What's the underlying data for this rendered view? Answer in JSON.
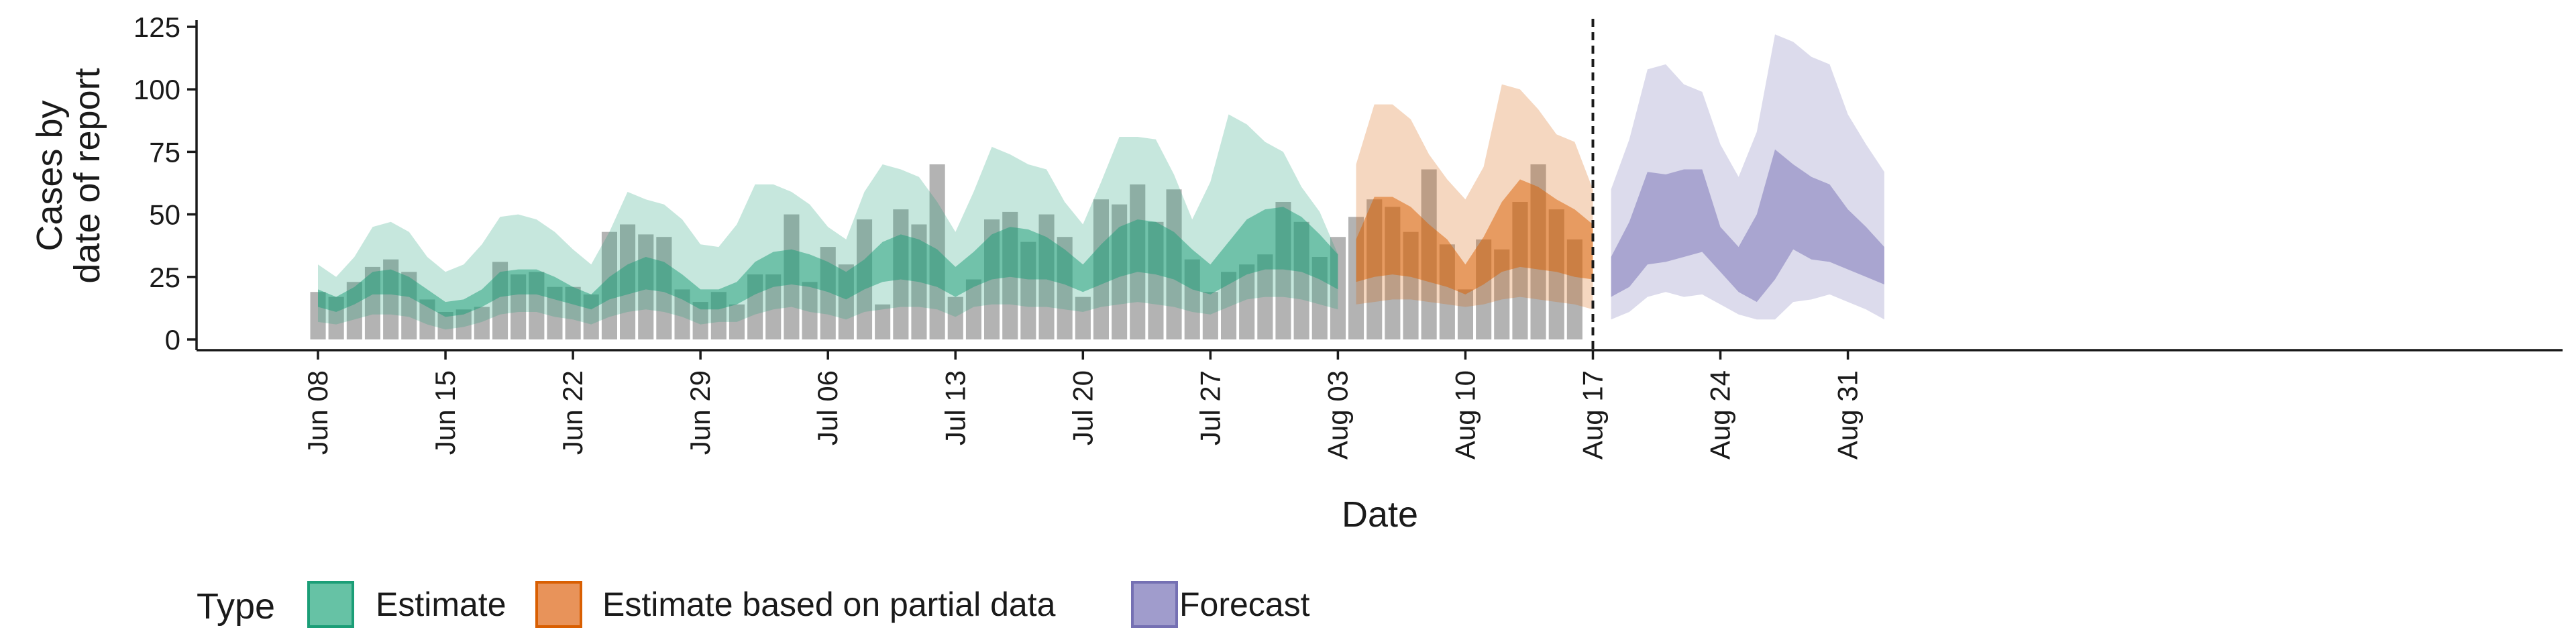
{
  "chart_data": {
    "type": "area",
    "xlabel": "Date",
    "ylabel_lines": [
      "Cases by",
      "date of report"
    ],
    "ylim": [
      0,
      125
    ],
    "yticks": [
      0,
      25,
      50,
      75,
      100,
      125
    ],
    "x_range": [
      "2020-06-04",
      "2020-09-02"
    ],
    "xticks": [
      {
        "date": "2020-06-08",
        "label": "Jun 08"
      },
      {
        "date": "2020-06-15",
        "label": "Jun 15"
      },
      {
        "date": "2020-06-22",
        "label": "Jun 22"
      },
      {
        "date": "2020-06-29",
        "label": "Jun 29"
      },
      {
        "date": "2020-07-06",
        "label": "Jul 06"
      },
      {
        "date": "2020-07-13",
        "label": "Jul 13"
      },
      {
        "date": "2020-07-20",
        "label": "Jul 20"
      },
      {
        "date": "2020-07-27",
        "label": "Jul 27"
      },
      {
        "date": "2020-08-03",
        "label": "Aug 03"
      },
      {
        "date": "2020-08-10",
        "label": "Aug 10"
      },
      {
        "date": "2020-08-17",
        "label": "Aug 17"
      },
      {
        "date": "2020-08-24",
        "label": "Aug 24"
      },
      {
        "date": "2020-08-31",
        "label": "Aug 31"
      }
    ],
    "vline_date": "2020-08-17",
    "legend": {
      "title": "Type",
      "placement": "bottom",
      "entries": [
        {
          "label": "Estimate",
          "fill": "#66c2a5",
          "stroke": "#1b9e77"
        },
        {
          "label": "Estimate based on partial data",
          "fill": "#e8935a",
          "stroke": "#d95f02"
        },
        {
          "label": "Forecast",
          "fill": "#a09ccc",
          "stroke": "#7570b3"
        }
      ]
    },
    "colors": {
      "bars": "#b3b3b3",
      "estimate": "#1b9e77",
      "partial": "#d95f02",
      "forecast": "#7570b3",
      "vline": "#1a1a1a"
    },
    "reported_cases": {
      "start_date": "2020-06-08",
      "values": [
        19,
        17,
        23,
        29,
        32,
        27,
        16,
        11,
        12,
        13,
        31,
        26,
        27,
        21,
        21,
        18,
        43,
        46,
        42,
        41,
        20,
        15,
        19,
        14,
        26,
        26,
        50,
        23,
        37,
        30,
        48,
        14,
        52,
        46,
        70,
        17,
        24,
        48,
        51,
        39,
        50,
        41,
        17,
        56,
        54,
        62,
        47,
        60,
        32,
        19,
        27,
        30,
        34,
        55,
        47,
        33,
        41,
        49,
        56,
        53,
        43,
        68,
        38,
        20,
        40,
        36,
        55,
        70,
        52,
        40
      ]
    },
    "series": [
      {
        "name": "Estimate",
        "start_date": "2020-06-08",
        "lower90": [
          7,
          6,
          8,
          10,
          10,
          9,
          6,
          4,
          5,
          7,
          10,
          11,
          11,
          9,
          8,
          6,
          9,
          11,
          12,
          11,
          9,
          6,
          7,
          7,
          10,
          12,
          13,
          11,
          10,
          8,
          11,
          12,
          13,
          13,
          12,
          9,
          13,
          14,
          14,
          13,
          13,
          12,
          11,
          13,
          14,
          15,
          14,
          13,
          11,
          10,
          13,
          16,
          17,
          17,
          16,
          14,
          12
        ],
        "lower50": [
          13,
          11,
          14,
          18,
          18,
          17,
          13,
          9,
          10,
          13,
          17,
          18,
          18,
          16,
          14,
          12,
          16,
          18,
          20,
          19,
          16,
          12,
          12,
          14,
          18,
          21,
          22,
          21,
          19,
          16,
          20,
          23,
          24,
          23,
          21,
          17,
          21,
          24,
          25,
          24,
          24,
          22,
          19,
          22,
          25,
          27,
          26,
          24,
          20,
          18,
          22,
          26,
          28,
          28,
          27,
          24,
          20
        ],
        "upper50": [
          20,
          17,
          21,
          27,
          28,
          25,
          20,
          15,
          16,
          20,
          27,
          28,
          28,
          25,
          21,
          18,
          25,
          30,
          33,
          31,
          26,
          20,
          20,
          23,
          31,
          35,
          36,
          34,
          31,
          27,
          32,
          39,
          42,
          40,
          36,
          29,
          35,
          42,
          45,
          44,
          41,
          36,
          30,
          38,
          45,
          48,
          47,
          43,
          36,
          30,
          39,
          48,
          52,
          53,
          49,
          42,
          34
        ],
        "upper90": [
          30,
          25,
          33,
          45,
          47,
          43,
          33,
          27,
          30,
          38,
          49,
          50,
          48,
          43,
          36,
          30,
          43,
          59,
          56,
          54,
          48,
          38,
          37,
          46,
          62,
          62,
          59,
          54,
          45,
          40,
          59,
          70,
          68,
          65,
          55,
          43,
          59,
          77,
          74,
          70,
          68,
          55,
          46,
          63,
          81,
          81,
          80,
          66,
          48,
          63,
          90,
          86,
          79,
          75,
          61,
          51,
          0
        ]
      },
      {
        "name": "Estimate based on partial data",
        "start_date": "2020-08-04",
        "lower90": [
          14,
          15,
          16,
          16,
          15,
          14,
          13,
          14,
          16,
          17,
          16,
          15,
          14,
          12
        ],
        "lower50": [
          23,
          25,
          26,
          25,
          23,
          21,
          18,
          22,
          27,
          29,
          28,
          27,
          25,
          24
        ],
        "upper50": [
          40,
          57,
          57,
          53,
          46,
          40,
          30,
          41,
          55,
          64,
          61,
          56,
          52,
          46
        ],
        "upper90": [
          70,
          94,
          94,
          88,
          74,
          64,
          56,
          69,
          102,
          100,
          92,
          82,
          79,
          60
        ]
      },
      {
        "name": "Forecast",
        "start_date": "2020-08-18",
        "lower90": [
          8,
          11,
          17,
          19,
          17,
          18,
          14,
          10,
          8,
          8,
          15,
          16,
          18,
          15,
          12,
          8
        ],
        "lower50": [
          17,
          21,
          30,
          31,
          33,
          35,
          27,
          19,
          15,
          24,
          36,
          32,
          31,
          28,
          25,
          22
        ],
        "upper50": [
          33,
          47,
          67,
          66,
          68,
          68,
          45,
          37,
          50,
          76,
          70,
          65,
          62,
          52,
          45,
          37
        ],
        "upper90": [
          60,
          80,
          108,
          110,
          102,
          99,
          78,
          65,
          83,
          122,
          119,
          113,
          110,
          90,
          78,
          67
        ]
      }
    ]
  }
}
